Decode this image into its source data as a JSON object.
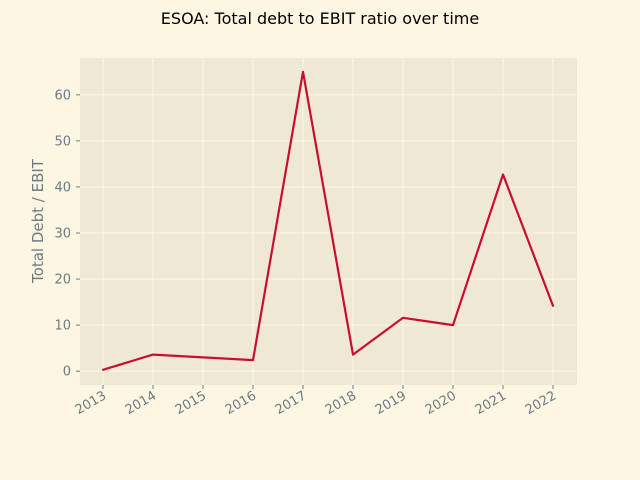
{
  "colors": {
    "background": "#fdf6e3",
    "plot_background": "#eee8d5",
    "grid": "#fdf6e3",
    "text": "#6d7b84",
    "series": "#c8102e"
  },
  "chart_data": {
    "type": "line",
    "title": "ESOA: Total debt to EBIT ratio over time",
    "xlabel": "",
    "ylabel": "Total Debt / EBIT",
    "x": [
      "2013",
      "2014",
      "2015",
      "2016",
      "2017",
      "2018",
      "2019",
      "2020",
      "2021",
      "2022"
    ],
    "series": [
      {
        "values": [
          0.3,
          3.6,
          3.0,
          2.4,
          65.0,
          3.6,
          11.6,
          10.0,
          42.7,
          14.2
        ]
      }
    ],
    "ylim": [
      -3,
      68
    ],
    "yticks": [
      0,
      10,
      20,
      30,
      40,
      50,
      60
    ],
    "grid": true,
    "legend": "none"
  }
}
